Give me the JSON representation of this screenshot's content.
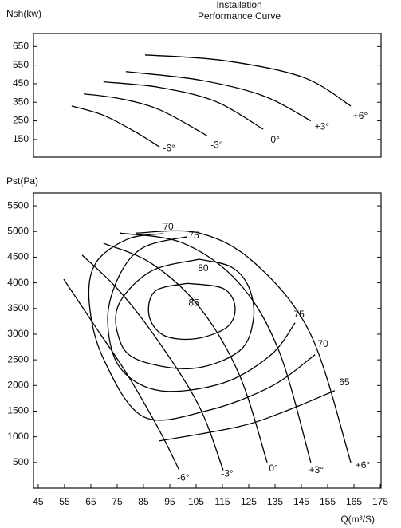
{
  "chart_data": [
    {
      "type": "line",
      "title": "Installation",
      "subtitle": "Performance Curve",
      "y_label": "Nsh(kw)",
      "xlim": [
        43.2,
        175.3
      ],
      "ylim": [
        55,
        720
      ],
      "yticks": [
        150,
        250,
        350,
        450,
        550,
        650
      ],
      "series": [
        {
          "name": "-6°",
          "color": "#000000",
          "x": [
            57.7,
            69.8,
            82,
            91.1
          ],
          "values": [
            330,
            280,
            190,
            110
          ]
        },
        {
          "name": "-3°",
          "color": "#000000",
          "x": [
            62.3,
            75.9,
            91.1,
            109.2
          ],
          "values": [
            395,
            370,
            310,
            170
          ]
        },
        {
          "name": "0°",
          "color": "#000000",
          "x": [
            69.8,
            91.1,
            112.3,
            130.5
          ],
          "values": [
            460,
            430,
            355,
            205
          ]
        },
        {
          "name": "+3°",
          "color": "#000000",
          "x": [
            78.3,
            106.2,
            130.5,
            148.6
          ],
          "values": [
            515,
            470,
            385,
            250
          ]
        },
        {
          "name": "+6°",
          "color": "#000000",
          "x": [
            85.6,
            115.3,
            145.6,
            163.8
          ],
          "values": [
            605,
            575,
            485,
            330
          ]
        }
      ]
    },
    {
      "type": "line",
      "y_label": "Pst(Pa)",
      "x_label": "Q(m³/S)",
      "xlim": [
        43.2,
        175.3
      ],
      "ylim": [
        0,
        5750
      ],
      "xticks": [
        45,
        55,
        65,
        75,
        85,
        95,
        105,
        115,
        125,
        135,
        145,
        155,
        165,
        175
      ],
      "yticks": [
        500,
        1000,
        1500,
        2000,
        2500,
        3000,
        3500,
        4000,
        4500,
        5000,
        5500
      ],
      "series": [
        {
          "name": "-6°",
          "color": "#000000",
          "x": [
            54.7,
            66.8,
            78.9,
            91.1,
            98.6
          ],
          "values": [
            4070,
            3140,
            2210,
            1120,
            350
          ]
        },
        {
          "name": "-3°",
          "color": "#000000",
          "x": [
            61.7,
            75.9,
            91.1,
            106.2,
            115.3
          ],
          "values": [
            4540,
            3840,
            2830,
            1590,
            350
          ]
        },
        {
          "name": "0°",
          "color": "#000000",
          "x": [
            69.8,
            88,
            106.2,
            121.4,
            132
          ],
          "values": [
            4770,
            4380,
            3530,
            2210,
            500
          ]
        },
        {
          "name": "+3°",
          "color": "#000000",
          "x": [
            75.9,
            100.2,
            121.4,
            136.5,
            148.6
          ],
          "values": [
            4970,
            4770,
            3990,
            2670,
            500
          ]
        },
        {
          "name": "+6°",
          "color": "#000000",
          "x": [
            82,
            106.2,
            127.4,
            148.6,
            163.8
          ],
          "values": [
            4970,
            4970,
            4380,
            2990,
            500
          ]
        },
        {
          "name": "65",
          "color": "#000000",
          "x": [
            91.1,
            121.4,
            139.5,
            157.7
          ],
          "values": [
            920,
            1200,
            1510,
            1900
          ]
        },
        {
          "name": "70",
          "color": "#000000",
          "x": [
            92.6,
            78.9,
            66.8,
            64.4,
            69.8,
            85,
            109.2,
            133.5,
            150.2
          ],
          "values": [
            4960,
            4850,
            4380,
            3610,
            2520,
            1390,
            1510,
            1980,
            2600
          ]
        },
        {
          "name": "75",
          "color": "#000000",
          "x": [
            101.7,
            85,
            75.9,
            71.4,
            75.9,
            91.1,
            115.3,
            133.5,
            142.6
          ],
          "values": [
            4900,
            4690,
            4150,
            3300,
            2360,
            1900,
            2050,
            2600,
            3220
          ]
        },
        {
          "name": "80",
          "color": "#000000",
          "x": [
            106.2,
            88,
            75.9,
            75.3,
            82,
            103.2,
            121.4,
            126.8,
            125,
            118.3,
            106.2
          ],
          "values": [
            4460,
            4230,
            3610,
            2990,
            2520,
            2330,
            2670,
            3300,
            3920,
            4310,
            4460
          ]
        },
        {
          "name": "85",
          "color": "#000000",
          "x": [
            101.7,
            89.5,
            87.1,
            92.6,
            104.7,
            116.8,
            119.8,
            115.3,
            101.7
          ],
          "values": [
            3990,
            3840,
            3370,
            2980,
            2910,
            3140,
            3530,
            3890,
            3990
          ]
        }
      ]
    }
  ]
}
